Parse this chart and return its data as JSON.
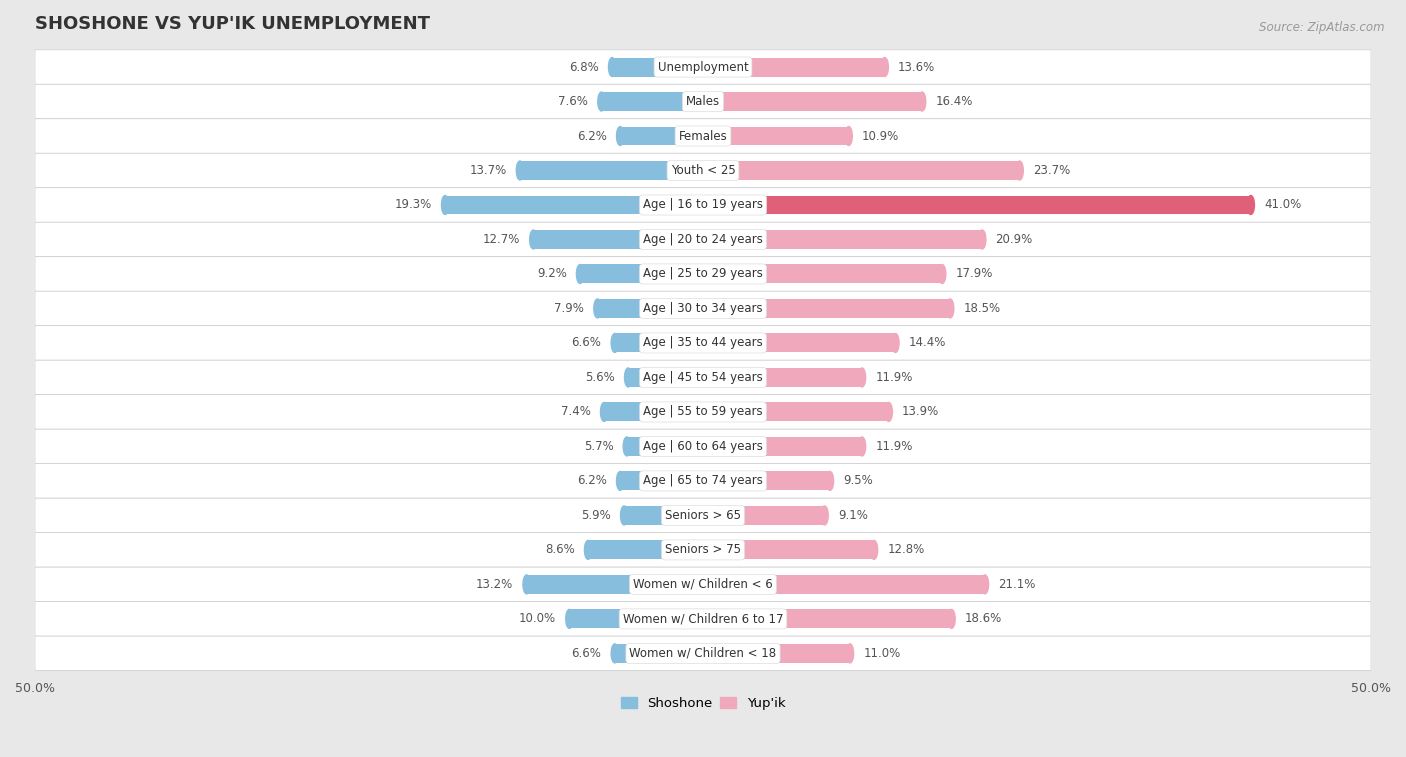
{
  "title": "SHOSHONE VS YUP'IK UNEMPLOYMENT",
  "source": "Source: ZipAtlas.com",
  "categories": [
    "Unemployment",
    "Males",
    "Females",
    "Youth < 25",
    "Age | 16 to 19 years",
    "Age | 20 to 24 years",
    "Age | 25 to 29 years",
    "Age | 30 to 34 years",
    "Age | 35 to 44 years",
    "Age | 45 to 54 years",
    "Age | 55 to 59 years",
    "Age | 60 to 64 years",
    "Age | 65 to 74 years",
    "Seniors > 65",
    "Seniors > 75",
    "Women w/ Children < 6",
    "Women w/ Children 6 to 17",
    "Women w/ Children < 18"
  ],
  "shoshone": [
    6.8,
    7.6,
    6.2,
    13.7,
    19.3,
    12.7,
    9.2,
    7.9,
    6.6,
    5.6,
    7.4,
    5.7,
    6.2,
    5.9,
    8.6,
    13.2,
    10.0,
    6.6
  ],
  "yupik": [
    13.6,
    16.4,
    10.9,
    23.7,
    41.0,
    20.9,
    17.9,
    18.5,
    14.4,
    11.9,
    13.9,
    11.9,
    9.5,
    9.1,
    12.8,
    21.1,
    18.6,
    11.0
  ],
  "shoshone_color": "#88bedd",
  "yupik_color": "#f0a8bc",
  "yupik_highlight_color": "#e0607a",
  "highlight_index": 4,
  "bg_color": "#e8e8e8",
  "row_color_odd": "#f5f5f5",
  "row_color_even": "#ebebeb",
  "axis_limit": 50.0,
  "bar_height": 0.55,
  "legend_shoshone": "Shoshone",
  "legend_yupik": "Yup'ik",
  "title_fontsize": 13,
  "label_fontsize": 8.5,
  "cat_fontsize": 8.5
}
